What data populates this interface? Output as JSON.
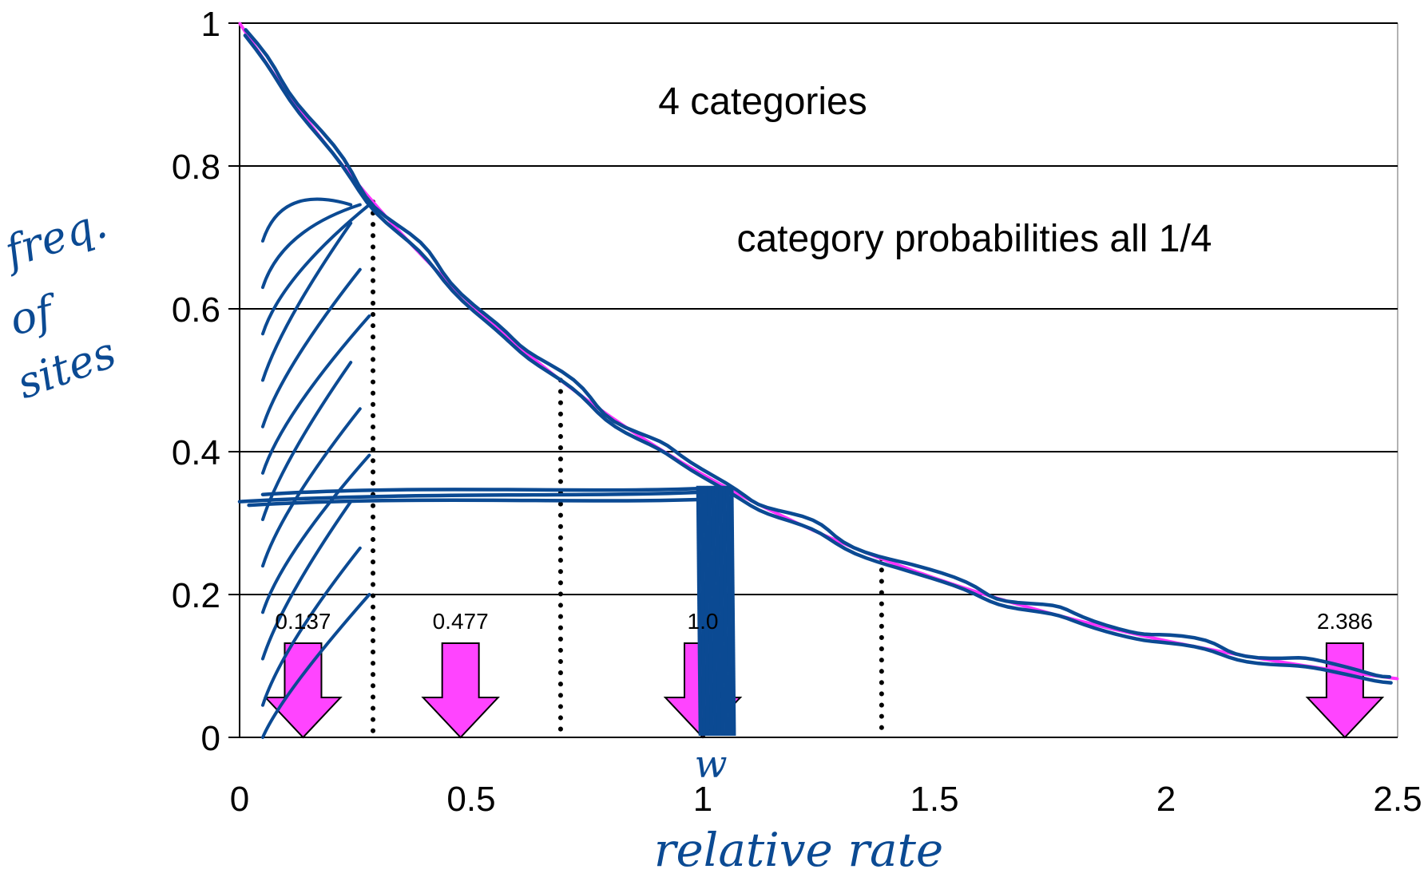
{
  "chart_data": {
    "type": "line",
    "x_ticks": [
      "0",
      "0.5",
      "1",
      "1.5",
      "2",
      "2.5"
    ],
    "y_ticks": [
      "0",
      "0.2",
      "0.4",
      "0.6",
      "0.8",
      "1"
    ],
    "xlim": [
      0,
      2.5
    ],
    "ylim": [
      0,
      1
    ],
    "grid": "horizontal",
    "series": [
      {
        "x": [
          0,
          0.1,
          0.2,
          0.3,
          0.4,
          0.5,
          0.6,
          0.7,
          0.8,
          0.9,
          1.0,
          1.2,
          1.4,
          1.6,
          1.8,
          2.0,
          2.2,
          2.4,
          2.5
        ],
        "y": [
          1.0,
          0.905,
          0.819,
          0.741,
          0.67,
          0.607,
          0.549,
          0.497,
          0.449,
          0.407,
          0.368,
          0.301,
          0.247,
          0.202,
          0.165,
          0.135,
          0.111,
          0.091,
          0.082
        ],
        "color": "#ff33ff"
      }
    ],
    "category_boundaries": [
      0.288,
      0.693,
      1.386
    ],
    "category_rates": [
      {
        "x": 0.137,
        "label": "0.137"
      },
      {
        "x": 0.477,
        "label": "0.477"
      },
      {
        "x": 1.0,
        "label": "1.0"
      },
      {
        "x": 2.386,
        "label": "2.386"
      }
    ],
    "annotations": [
      "4 categories",
      "category probabilities all 1/4"
    ],
    "handwritten": {
      "ylabel": [
        "freq.",
        "of",
        "sites"
      ],
      "xlabel": "relative rate",
      "under_one": "w"
    },
    "colors": {
      "curve": "#ff33ff",
      "arrow": "#ff44ff",
      "ink": "#0b4a93",
      "grid": "#000000"
    }
  }
}
